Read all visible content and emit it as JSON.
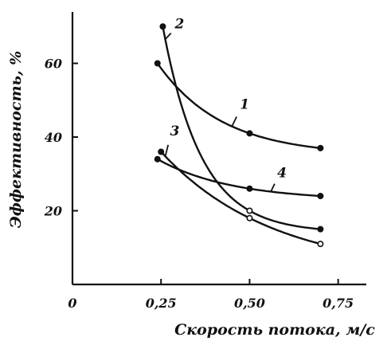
{
  "chart_data": {
    "type": "line",
    "xlabel": "Скорость потока, м/с",
    "ylabel": "Эффективность, %",
    "xlim": [
      0,
      0.78
    ],
    "ylim": [
      0,
      72
    ],
    "x_ticks": [
      {
        "value": 0,
        "label": "0"
      },
      {
        "value": 0.25,
        "label": "0,25"
      },
      {
        "value": 0.5,
        "label": "0,50"
      },
      {
        "value": 0.75,
        "label": "0,75"
      }
    ],
    "y_ticks": [
      {
        "value": 20,
        "label": "20"
      },
      {
        "value": 40,
        "label": "40"
      },
      {
        "value": 60,
        "label": "60"
      }
    ],
    "grid": false,
    "series": [
      {
        "label": "1",
        "x": [
          0.24,
          0.5,
          0.7
        ],
        "y": [
          60,
          41,
          37
        ]
      },
      {
        "label": "2",
        "x": [
          0.255,
          0.5,
          0.7
        ],
        "y": [
          70,
          20,
          15
        ]
      },
      {
        "label": "3",
        "x": [
          0.25,
          0.5,
          0.7
        ],
        "y": [
          36,
          18,
          11
        ]
      },
      {
        "label": "4",
        "x": [
          0.24,
          0.5,
          0.7
        ],
        "y": [
          34,
          26,
          24
        ]
      }
    ]
  }
}
